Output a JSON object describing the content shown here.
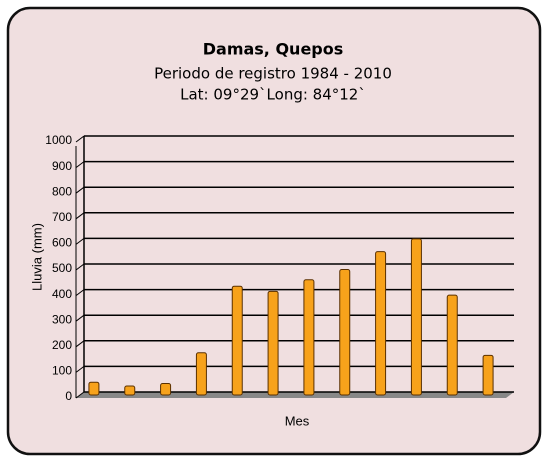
{
  "chart_data": {
    "type": "bar",
    "title": "Damas, Quepos",
    "subtitle": [
      "Periodo de registro 1984 - 2010",
      "Lat: 09°29`Long: 84°12`"
    ],
    "y_label": "Lluvia (mm)",
    "x_label": "Mes",
    "categories": [
      null,
      null,
      null,
      null,
      null,
      null,
      null,
      null,
      null,
      null,
      null,
      null
    ],
    "values": [
      50,
      35,
      45,
      165,
      425,
      405,
      450,
      490,
      560,
      610,
      390,
      155
    ],
    "color": "#f7a21b",
    "ylim": [
      0,
      1000
    ],
    "yticks": [
      0,
      100,
      200,
      300,
      400,
      500,
      600,
      700,
      800,
      900,
      1000
    ],
    "grid": true
  }
}
